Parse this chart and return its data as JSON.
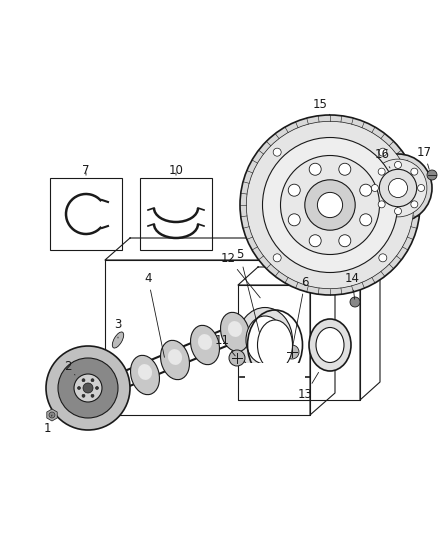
{
  "background_color": "#ffffff",
  "fig_width": 4.38,
  "fig_height": 5.33,
  "dpi": 100,
  "line_color": "#1a1a1a",
  "label_color": "#1a1a1a",
  "label_fontsize": 8.5
}
